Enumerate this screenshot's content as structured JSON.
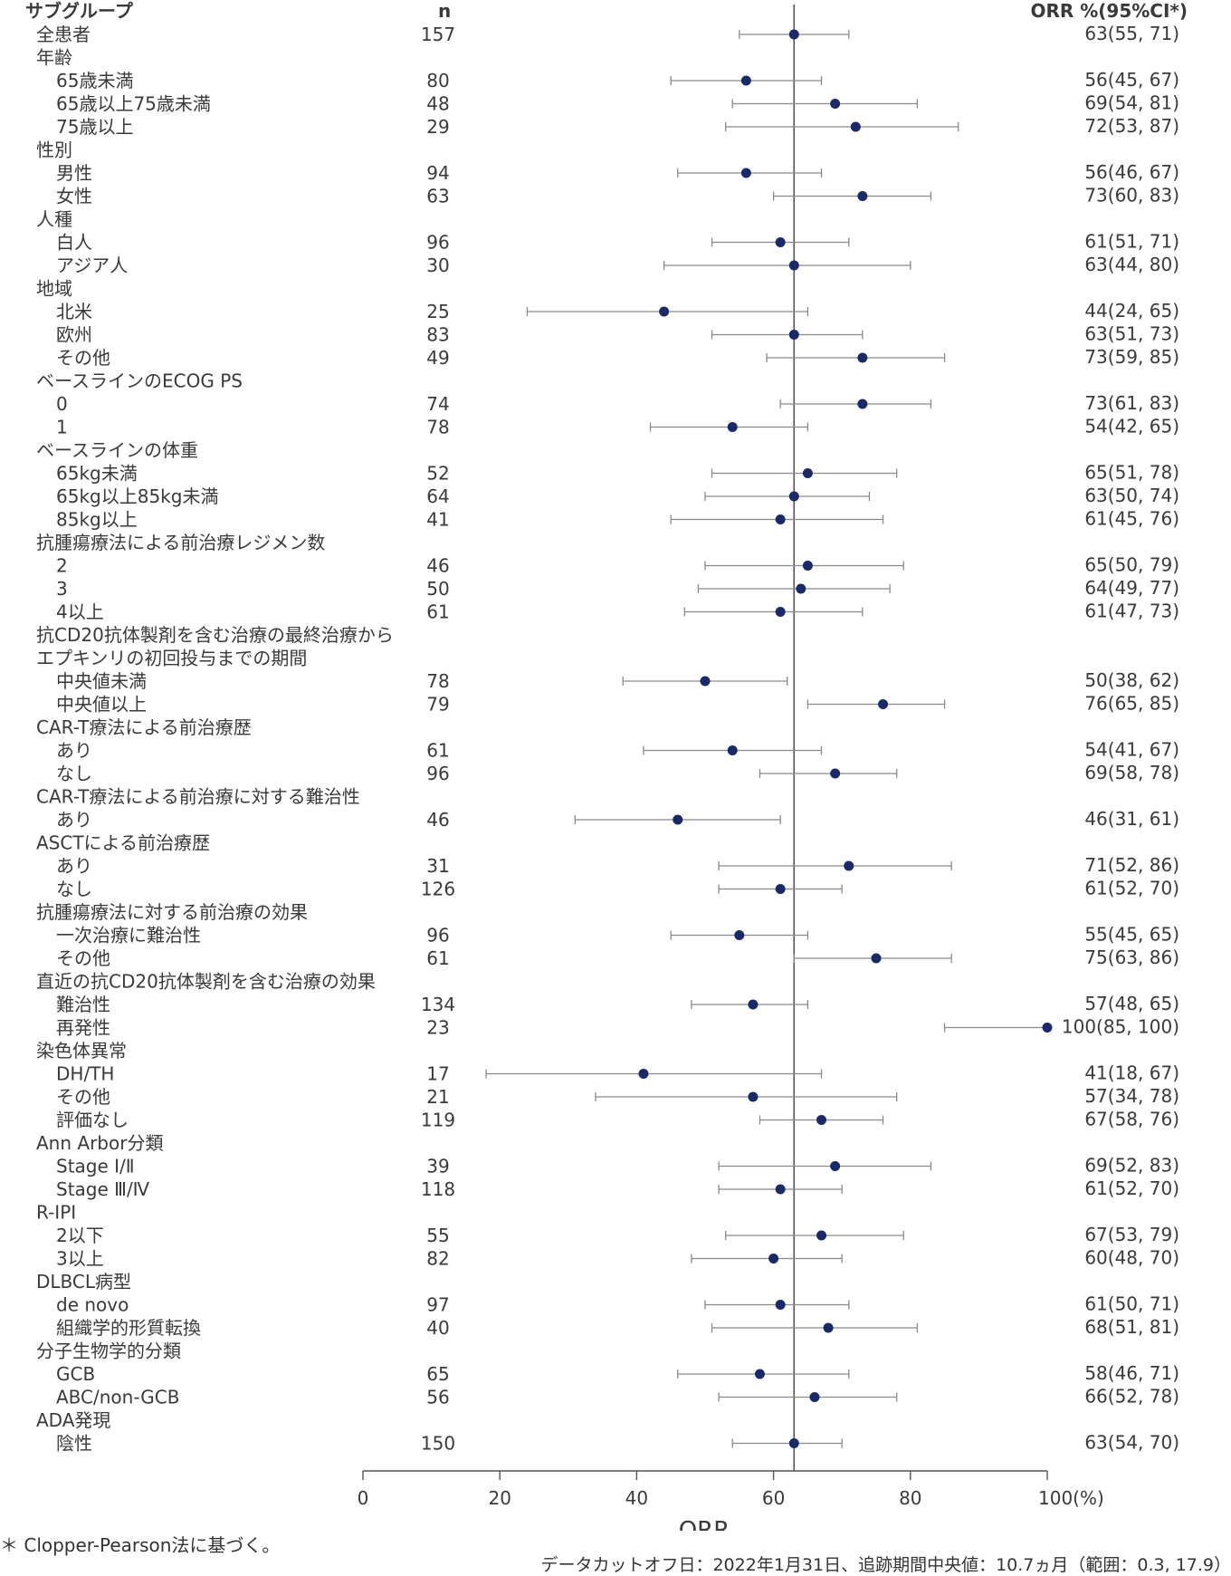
{
  "colors": {
    "marker": "#1a2a66",
    "ci_line": "#8a8a8a",
    "ref_line": "#555555",
    "text": "#3a3a3a"
  },
  "chart_data": {
    "type": "forest",
    "xlabel": "ORR",
    "xlim": [
      0,
      100
    ],
    "x_ticks": [
      "0",
      "20",
      "40",
      "60",
      "80",
      "100(%)"
    ],
    "reference_value": 63,
    "headers": {
      "subgroup": "サブグループ",
      "n": "n",
      "estimate": "ORR %(95%CI*)"
    },
    "rows": [
      {
        "label": "全患者",
        "indent": 1,
        "n": "157",
        "orr": 63,
        "lo": 55,
        "hi": 71,
        "text": "63(55, 71)"
      },
      {
        "label": "年齢",
        "indent": 1
      },
      {
        "label": "65歳未満",
        "indent": 2,
        "n": "80",
        "orr": 56,
        "lo": 45,
        "hi": 67,
        "text": "56(45, 67)"
      },
      {
        "label": "65歳以上75歳未満",
        "indent": 2,
        "n": "48",
        "orr": 69,
        "lo": 54,
        "hi": 81,
        "text": "69(54, 81)"
      },
      {
        "label": "75歳以上",
        "indent": 2,
        "n": "29",
        "orr": 72,
        "lo": 53,
        "hi": 87,
        "text": "72(53, 87)"
      },
      {
        "label": "性別",
        "indent": 1
      },
      {
        "label": "男性",
        "indent": 2,
        "n": "94",
        "orr": 56,
        "lo": 46,
        "hi": 67,
        "text": "56(46, 67)"
      },
      {
        "label": "女性",
        "indent": 2,
        "n": "63",
        "orr": 73,
        "lo": 60,
        "hi": 83,
        "text": "73(60, 83)"
      },
      {
        "label": "人種",
        "indent": 1
      },
      {
        "label": "白人",
        "indent": 2,
        "n": "96",
        "orr": 61,
        "lo": 51,
        "hi": 71,
        "text": "61(51, 71)"
      },
      {
        "label": "アジア人",
        "indent": 2,
        "n": "30",
        "orr": 63,
        "lo": 44,
        "hi": 80,
        "text": "63(44, 80)"
      },
      {
        "label": "地域",
        "indent": 1
      },
      {
        "label": "北米",
        "indent": 2,
        "n": "25",
        "orr": 44,
        "lo": 24,
        "hi": 65,
        "text": "44(24, 65)"
      },
      {
        "label": "欧州",
        "indent": 2,
        "n": "83",
        "orr": 63,
        "lo": 51,
        "hi": 73,
        "text": "63(51, 73)"
      },
      {
        "label": "その他",
        "indent": 2,
        "n": "49",
        "orr": 73,
        "lo": 59,
        "hi": 85,
        "text": "73(59, 85)"
      },
      {
        "label": "ベースラインのECOG PS",
        "indent": 1
      },
      {
        "label": "0",
        "indent": 2,
        "n": "74",
        "orr": 73,
        "lo": 61,
        "hi": 83,
        "text": "73(61, 83)"
      },
      {
        "label": "1",
        "indent": 2,
        "n": "78",
        "orr": 54,
        "lo": 42,
        "hi": 65,
        "text": "54(42, 65)"
      },
      {
        "label": "ベースラインの体重",
        "indent": 1
      },
      {
        "label": "65kg未満",
        "indent": 2,
        "n": "52",
        "orr": 65,
        "lo": 51,
        "hi": 78,
        "text": "65(51, 78)"
      },
      {
        "label": "65kg以上85kg未満",
        "indent": 2,
        "n": "64",
        "orr": 63,
        "lo": 50,
        "hi": 74,
        "text": "63(50, 74)"
      },
      {
        "label": "85kg以上",
        "indent": 2,
        "n": "41",
        "orr": 61,
        "lo": 45,
        "hi": 76,
        "text": "61(45, 76)"
      },
      {
        "label": "抗腫瘍療法による前治療レジメン数",
        "indent": 1
      },
      {
        "label": "2",
        "indent": 2,
        "n": "46",
        "orr": 65,
        "lo": 50,
        "hi": 79,
        "text": "65(50, 79)"
      },
      {
        "label": "3",
        "indent": 2,
        "n": "50",
        "orr": 64,
        "lo": 49,
        "hi": 77,
        "text": "64(49, 77)"
      },
      {
        "label": "4以上",
        "indent": 2,
        "n": "61",
        "orr": 61,
        "lo": 47,
        "hi": 73,
        "text": "61(47, 73)"
      },
      {
        "label": "抗CD20抗体製剤を含む治療の最終治療から",
        "indent": 1
      },
      {
        "label": "エプキンリの初回投与までの期間",
        "indent": 1
      },
      {
        "label": "中央値未満",
        "indent": 2,
        "n": "78",
        "orr": 50,
        "lo": 38,
        "hi": 62,
        "text": "50(38, 62)"
      },
      {
        "label": "中央値以上",
        "indent": 2,
        "n": "79",
        "orr": 76,
        "lo": 65,
        "hi": 85,
        "text": "76(65, 85)"
      },
      {
        "label": "CAR-T療法による前治療歴",
        "indent": 1
      },
      {
        "label": "あり",
        "indent": 2,
        "n": "61",
        "orr": 54,
        "lo": 41,
        "hi": 67,
        "text": "54(41, 67)"
      },
      {
        "label": "なし",
        "indent": 2,
        "n": "96",
        "orr": 69,
        "lo": 58,
        "hi": 78,
        "text": "69(58, 78)"
      },
      {
        "label": "CAR-T療法による前治療に対する難治性",
        "indent": 1
      },
      {
        "label": "あり",
        "indent": 2,
        "n": "46",
        "orr": 46,
        "lo": 31,
        "hi": 61,
        "text": "46(31, 61)"
      },
      {
        "label": "ASCTによる前治療歴",
        "indent": 1
      },
      {
        "label": "あり",
        "indent": 2,
        "n": "31",
        "orr": 71,
        "lo": 52,
        "hi": 86,
        "text": "71(52, 86)"
      },
      {
        "label": "なし",
        "indent": 2,
        "n": "126",
        "orr": 61,
        "lo": 52,
        "hi": 70,
        "text": "61(52, 70)"
      },
      {
        "label": "抗腫瘍療法に対する前治療の効果",
        "indent": 1
      },
      {
        "label": "一次治療に難治性",
        "indent": 2,
        "n": "96",
        "orr": 55,
        "lo": 45,
        "hi": 65,
        "text": "55(45, 65)"
      },
      {
        "label": "その他",
        "indent": 2,
        "n": "61",
        "orr": 75,
        "lo": 63,
        "hi": 86,
        "text": "75(63, 86)"
      },
      {
        "label": "直近の抗CD20抗体製剤を含む治療の効果",
        "indent": 1
      },
      {
        "label": "難治性",
        "indent": 2,
        "n": "134",
        "orr": 57,
        "lo": 48,
        "hi": 65,
        "text": "57(48, 65)"
      },
      {
        "label": "再発性",
        "indent": 2,
        "n": "23",
        "orr": 100,
        "lo": 85,
        "hi": 100,
        "text": "100(85, 100)"
      },
      {
        "label": "染色体異常",
        "indent": 1
      },
      {
        "label": "DH/TH",
        "indent": 2,
        "n": "17",
        "orr": 41,
        "lo": 18,
        "hi": 67,
        "text": "41(18, 67)"
      },
      {
        "label": "その他",
        "indent": 2,
        "n": "21",
        "orr": 57,
        "lo": 34,
        "hi": 78,
        "text": "57(34, 78)"
      },
      {
        "label": "評価なし",
        "indent": 2,
        "n": "119",
        "orr": 67,
        "lo": 58,
        "hi": 76,
        "text": "67(58, 76)"
      },
      {
        "label": "Ann Arbor分類",
        "indent": 1
      },
      {
        "label": "Stage Ⅰ/Ⅱ",
        "indent": 2,
        "n": "39",
        "orr": 69,
        "lo": 52,
        "hi": 83,
        "text": "69(52, 83)"
      },
      {
        "label": "Stage Ⅲ/Ⅳ",
        "indent": 2,
        "n": "118",
        "orr": 61,
        "lo": 52,
        "hi": 70,
        "text": "61(52, 70)"
      },
      {
        "label": "R-IPI",
        "indent": 1
      },
      {
        "label": "2以下",
        "indent": 2,
        "n": "55",
        "orr": 67,
        "lo": 53,
        "hi": 79,
        "text": "67(53, 79)"
      },
      {
        "label": "3以上",
        "indent": 2,
        "n": "82",
        "orr": 60,
        "lo": 48,
        "hi": 70,
        "text": "60(48, 70)"
      },
      {
        "label": "DLBCL病型",
        "indent": 1
      },
      {
        "label": "de novo",
        "indent": 2,
        "n": "97",
        "orr": 61,
        "lo": 50,
        "hi": 71,
        "text": "61(50, 71)"
      },
      {
        "label": "組織学的形質転換",
        "indent": 2,
        "n": "40",
        "orr": 68,
        "lo": 51,
        "hi": 81,
        "text": "68(51, 81)"
      },
      {
        "label": "分子生物学的分類",
        "indent": 1
      },
      {
        "label": "GCB",
        "indent": 2,
        "n": "65",
        "orr": 58,
        "lo": 46,
        "hi": 71,
        "text": "58(46, 71)"
      },
      {
        "label": "ABC/non-GCB",
        "indent": 2,
        "n": "56",
        "orr": 66,
        "lo": 52,
        "hi": 78,
        "text": "66(52, 78)"
      },
      {
        "label": "ADA発現",
        "indent": 1
      },
      {
        "label": "陰性",
        "indent": 2,
        "n": "150",
        "orr": 63,
        "lo": 54,
        "hi": 70,
        "text": "63(54, 70)"
      }
    ]
  },
  "footnote": "＊ Clopper-Pearson法に基づく。",
  "cutoff_note": "データカットオフ日：2022年1月31日、追跡期間中央値：10.7ヵ月（範囲：0.3, 17.9）"
}
